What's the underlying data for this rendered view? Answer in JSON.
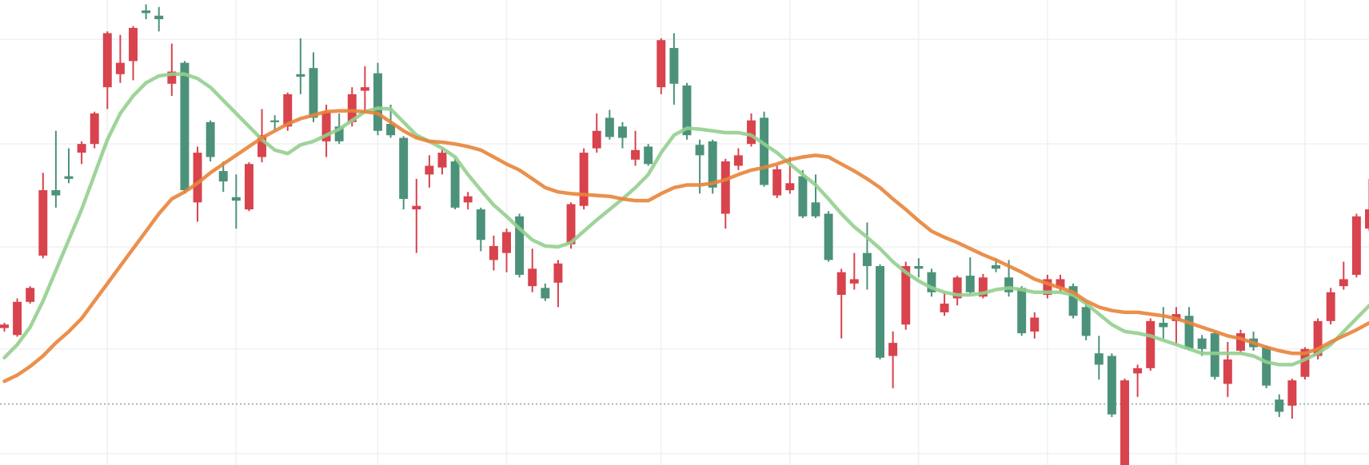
{
  "chart_data": {
    "type": "candlestick",
    "xlim": [
      -0.34,
      105.97
    ],
    "ylim": [
      0,
      533
    ],
    "x_grid": [
      8,
      18,
      29,
      39,
      51,
      61,
      71,
      81,
      91,
      101
    ],
    "y_grid": [
      13,
      133,
      250,
      368,
      488
    ],
    "price_line": 70,
    "up_color": "#d8434d",
    "down_color": "#4c927a",
    "grid_color": "#eef0f3",
    "price_line_color": "#8aa6a0",
    "open": [
      157,
      149,
      187,
      240,
      315,
      331,
      358,
      368,
      433,
      448,
      463,
      521,
      515,
      437,
      461,
      301,
      393,
      337,
      307,
      293,
      353,
      395,
      388,
      448,
      455,
      371,
      388,
      393,
      429,
      449,
      391,
      375,
      293,
      333,
      341,
      348,
      301,
      293,
      235,
      243,
      285,
      205,
      203,
      209,
      253,
      297,
      363,
      398,
      388,
      350,
      365,
      433,
      478,
      435,
      367,
      371,
      288,
      343,
      368,
      398,
      309,
      315,
      331,
      301,
      288,
      195,
      208,
      243,
      228,
      125,
      161,
      228,
      221,
      175,
      191,
      217,
      193,
      229,
      215,
      203,
      153,
      195,
      203,
      205,
      181,
      128,
      125,
      0,
      105,
      111,
      163,
      165,
      171,
      145,
      151,
      93,
      131,
      145,
      135,
      75,
      68,
      101,
      125,
      165,
      205,
      218,
      271
    ],
    "close": [
      161,
      187,
      203,
      315,
      309,
      328,
      368,
      403,
      495,
      461,
      501,
      518,
      511,
      451,
      315,
      358,
      353,
      325,
      303,
      345,
      378,
      393,
      425,
      445,
      398,
      405,
      371,
      425,
      433,
      383,
      378,
      305,
      297,
      343,
      358,
      295,
      308,
      258,
      251,
      267,
      218,
      225,
      191,
      231,
      299,
      358,
      383,
      376,
      375,
      361,
      345,
      487,
      437,
      378,
      355,
      318,
      348,
      355,
      395,
      321,
      339,
      323,
      285,
      285,
      235,
      221,
      213,
      228,
      123,
      140,
      228,
      225,
      198,
      185,
      215,
      198,
      215,
      225,
      198,
      151,
      169,
      213,
      213,
      171,
      148,
      115,
      58,
      97,
      111,
      165,
      158,
      173,
      133,
      133,
      101,
      121,
      151,
      135,
      91,
      61,
      97,
      133,
      165,
      198,
      213,
      285,
      293
    ],
    "high": [
      163,
      191,
      205,
      335,
      383,
      363,
      371,
      405,
      497,
      493,
      503,
      528,
      525,
      483,
      463,
      365,
      395,
      348,
      333,
      347,
      408,
      401,
      427,
      489,
      473,
      413,
      403,
      433,
      457,
      461,
      413,
      377,
      328,
      355,
      363,
      351,
      313,
      295,
      263,
      271,
      288,
      248,
      208,
      235,
      301,
      363,
      403,
      407,
      393,
      383,
      368,
      489,
      495,
      438,
      373,
      373,
      351,
      363,
      403,
      405,
      343,
      353,
      338,
      333,
      291,
      225,
      243,
      278,
      230,
      153,
      233,
      237,
      225,
      198,
      217,
      238,
      219,
      237,
      235,
      205,
      175,
      218,
      218,
      208,
      185,
      148,
      128,
      99,
      115,
      168,
      181,
      181,
      181,
      149,
      153,
      141,
      155,
      153,
      137,
      81,
      99,
      135,
      168,
      203,
      233,
      288,
      328
    ],
    "low": [
      153,
      147,
      185,
      237,
      295,
      323,
      345,
      363,
      408,
      438,
      441,
      511,
      497,
      423,
      311,
      279,
      348,
      313,
      271,
      291,
      347,
      383,
      383,
      425,
      393,
      353,
      368,
      388,
      403,
      378,
      375,
      293,
      243,
      318,
      333,
      293,
      293,
      245,
      223,
      221,
      215,
      198,
      188,
      181,
      248,
      293,
      358,
      373,
      363,
      343,
      343,
      425,
      413,
      373,
      311,
      311,
      271,
      338,
      365,
      319,
      306,
      311,
      283,
      283,
      233,
      145,
      201,
      201,
      121,
      88,
      155,
      215,
      193,
      171,
      183,
      195,
      191,
      221,
      193,
      148,
      145,
      191,
      198,
      168,
      143,
      98,
      55,
      0,
      78,
      108,
      145,
      138,
      131,
      125,
      98,
      78,
      128,
      131,
      88,
      55,
      53,
      98,
      121,
      161,
      201,
      215,
      268
    ],
    "series": [
      {
        "color": "#93cf8f",
        "values": [
          123,
          138,
          158,
          188,
          223,
          258,
          293,
          333,
          373,
          403,
          423,
          438,
          446,
          448,
          448,
          443,
          433,
          418,
          403,
          388,
          373,
          361,
          357,
          367,
          371,
          378,
          385,
          395,
          405,
          409,
          408,
          393,
          378,
          371,
          363,
          353,
          333,
          315,
          298,
          285,
          271,
          258,
          251,
          250,
          255,
          268,
          281,
          293,
          305,
          318,
          333,
          358,
          378,
          386,
          385,
          383,
          381,
          381,
          378,
          368,
          358,
          345,
          333,
          321,
          305,
          288,
          273,
          261,
          248,
          233,
          221,
          211,
          203,
          198,
          195,
          195,
          197,
          201,
          203,
          201,
          198,
          198,
          198,
          195,
          185,
          173,
          161,
          153,
          151,
          148,
          143,
          138,
          133,
          128,
          128,
          128,
          128,
          125,
          118,
          115,
          115,
          121,
          128,
          138,
          153,
          168,
          183
        ]
      },
      {
        "color": "#e8843a",
        "values": [
          96,
          103,
          113,
          125,
          140,
          153,
          168,
          188,
          208,
          228,
          248,
          268,
          288,
          305,
          313,
          323,
          335,
          345,
          355,
          365,
          375,
          383,
          391,
          397,
          401,
          405,
          406,
          406,
          405,
          403,
          393,
          383,
          375,
          371,
          370,
          368,
          365,
          361,
          353,
          345,
          338,
          328,
          318,
          313,
          311,
          310,
          309,
          308,
          305,
          303,
          303,
          311,
          318,
          321,
          321,
          323,
          327,
          333,
          338,
          341,
          345,
          350,
          353,
          355,
          353,
          345,
          337,
          328,
          318,
          305,
          293,
          280,
          268,
          261,
          255,
          248,
          241,
          235,
          228,
          221,
          213,
          208,
          203,
          198,
          188,
          181,
          177,
          175,
          175,
          173,
          171,
          168,
          163,
          158,
          153,
          148,
          145,
          140,
          135,
          131,
          128,
          128,
          133,
          141,
          148,
          155,
          163
        ]
      }
    ]
  }
}
